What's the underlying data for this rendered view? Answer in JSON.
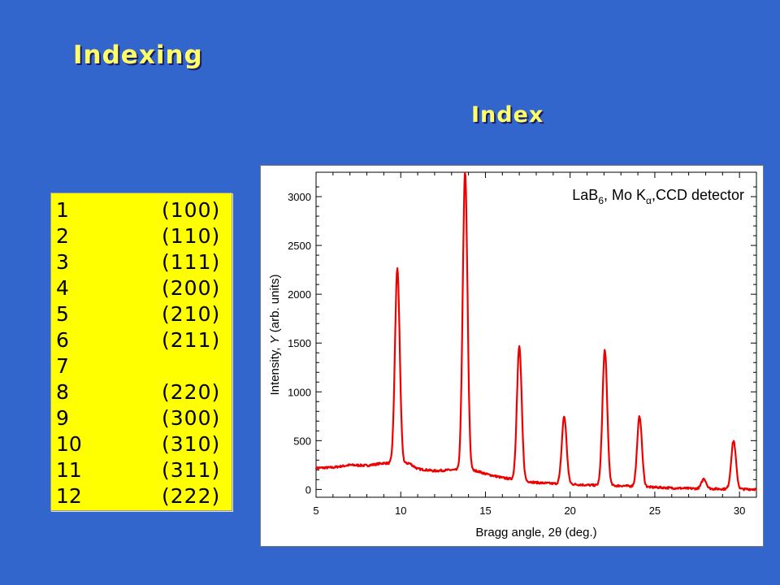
{
  "slide": {
    "title": "Indexing",
    "subtitle": "Index"
  },
  "index_table": [
    {
      "peak": "1",
      "hkl": "(100)"
    },
    {
      "peak": "2",
      "hkl": "(110)"
    },
    {
      "peak": "3",
      "hkl": "(111)"
    },
    {
      "peak": "4",
      "hkl": "(200)"
    },
    {
      "peak": "5",
      "hkl": "(210)"
    },
    {
      "peak": "6",
      "hkl": "(211)"
    },
    {
      "peak": "7",
      "hkl": ""
    },
    {
      "peak": "8",
      "hkl": "(220)"
    },
    {
      "peak": "9",
      "hkl": "(300)"
    },
    {
      "peak": "10",
      "hkl": "(310)"
    },
    {
      "peak": "11",
      "hkl": "(311)"
    },
    {
      "peak": "12",
      "hkl": "(222)"
    }
  ],
  "colors": {
    "background": "#3366cc",
    "title": "#ffff66",
    "table_bg": "#ffff00",
    "curve": "#ee0000"
  },
  "chart_data": {
    "type": "line",
    "legend": {
      "prefix": "LaB",
      "sub": "6",
      "mid": ", Mo K",
      "greek": "α",
      "suffix": ",CCD detector",
      "placement": "top-right"
    },
    "xlabel": {
      "text": "Bragg angle, 2",
      "symbol": "θ",
      "unit": " (deg.)"
    },
    "ylabel": {
      "pre": "Intensity, ",
      "italic": "Y",
      "post": " (arb. units)"
    },
    "xlim": [
      5,
      31
    ],
    "ylim": [
      -80,
      3250
    ],
    "xticks": [
      5,
      10,
      15,
      20,
      25,
      30
    ],
    "yticks": [
      0,
      500,
      1000,
      1500,
      2000,
      2500,
      3000
    ],
    "xtick_labels": [
      "5",
      "10",
      "15",
      "20",
      "25",
      "30"
    ],
    "ytick_labels": [
      "0",
      "500",
      "1000",
      "1500",
      "2000",
      "2500",
      "3000"
    ],
    "grid": false,
    "background_points": [
      [
        5,
        220
      ],
      [
        6,
        225
      ],
      [
        7,
        250
      ],
      [
        8,
        245
      ],
      [
        9,
        270
      ],
      [
        10,
        260
      ],
      [
        10.5,
        270
      ],
      [
        11,
        210
      ],
      [
        12,
        190
      ],
      [
        13,
        200
      ],
      [
        14.5,
        190
      ],
      [
        15,
        160
      ],
      [
        16,
        120
      ],
      [
        17,
        95
      ],
      [
        18,
        70
      ],
      [
        19,
        60
      ],
      [
        20,
        55
      ],
      [
        21,
        45
      ],
      [
        22,
        40
      ],
      [
        23,
        38
      ],
      [
        24,
        30
      ],
      [
        25,
        22
      ],
      [
        26,
        15
      ],
      [
        27,
        10
      ],
      [
        28,
        8
      ],
      [
        29,
        5
      ],
      [
        30,
        3
      ],
      [
        31,
        2
      ]
    ],
    "peaks": [
      {
        "position": 9.8,
        "height": 2000
      },
      {
        "position": 13.8,
        "height": 3050
      },
      {
        "position": 17.0,
        "height": 1370
      },
      {
        "position": 19.65,
        "height": 690
      },
      {
        "position": 22.05,
        "height": 1390
      },
      {
        "position": 24.1,
        "height": 720
      },
      {
        "position": 27.9,
        "height": 100
      },
      {
        "position": 29.65,
        "height": 495
      }
    ]
  }
}
